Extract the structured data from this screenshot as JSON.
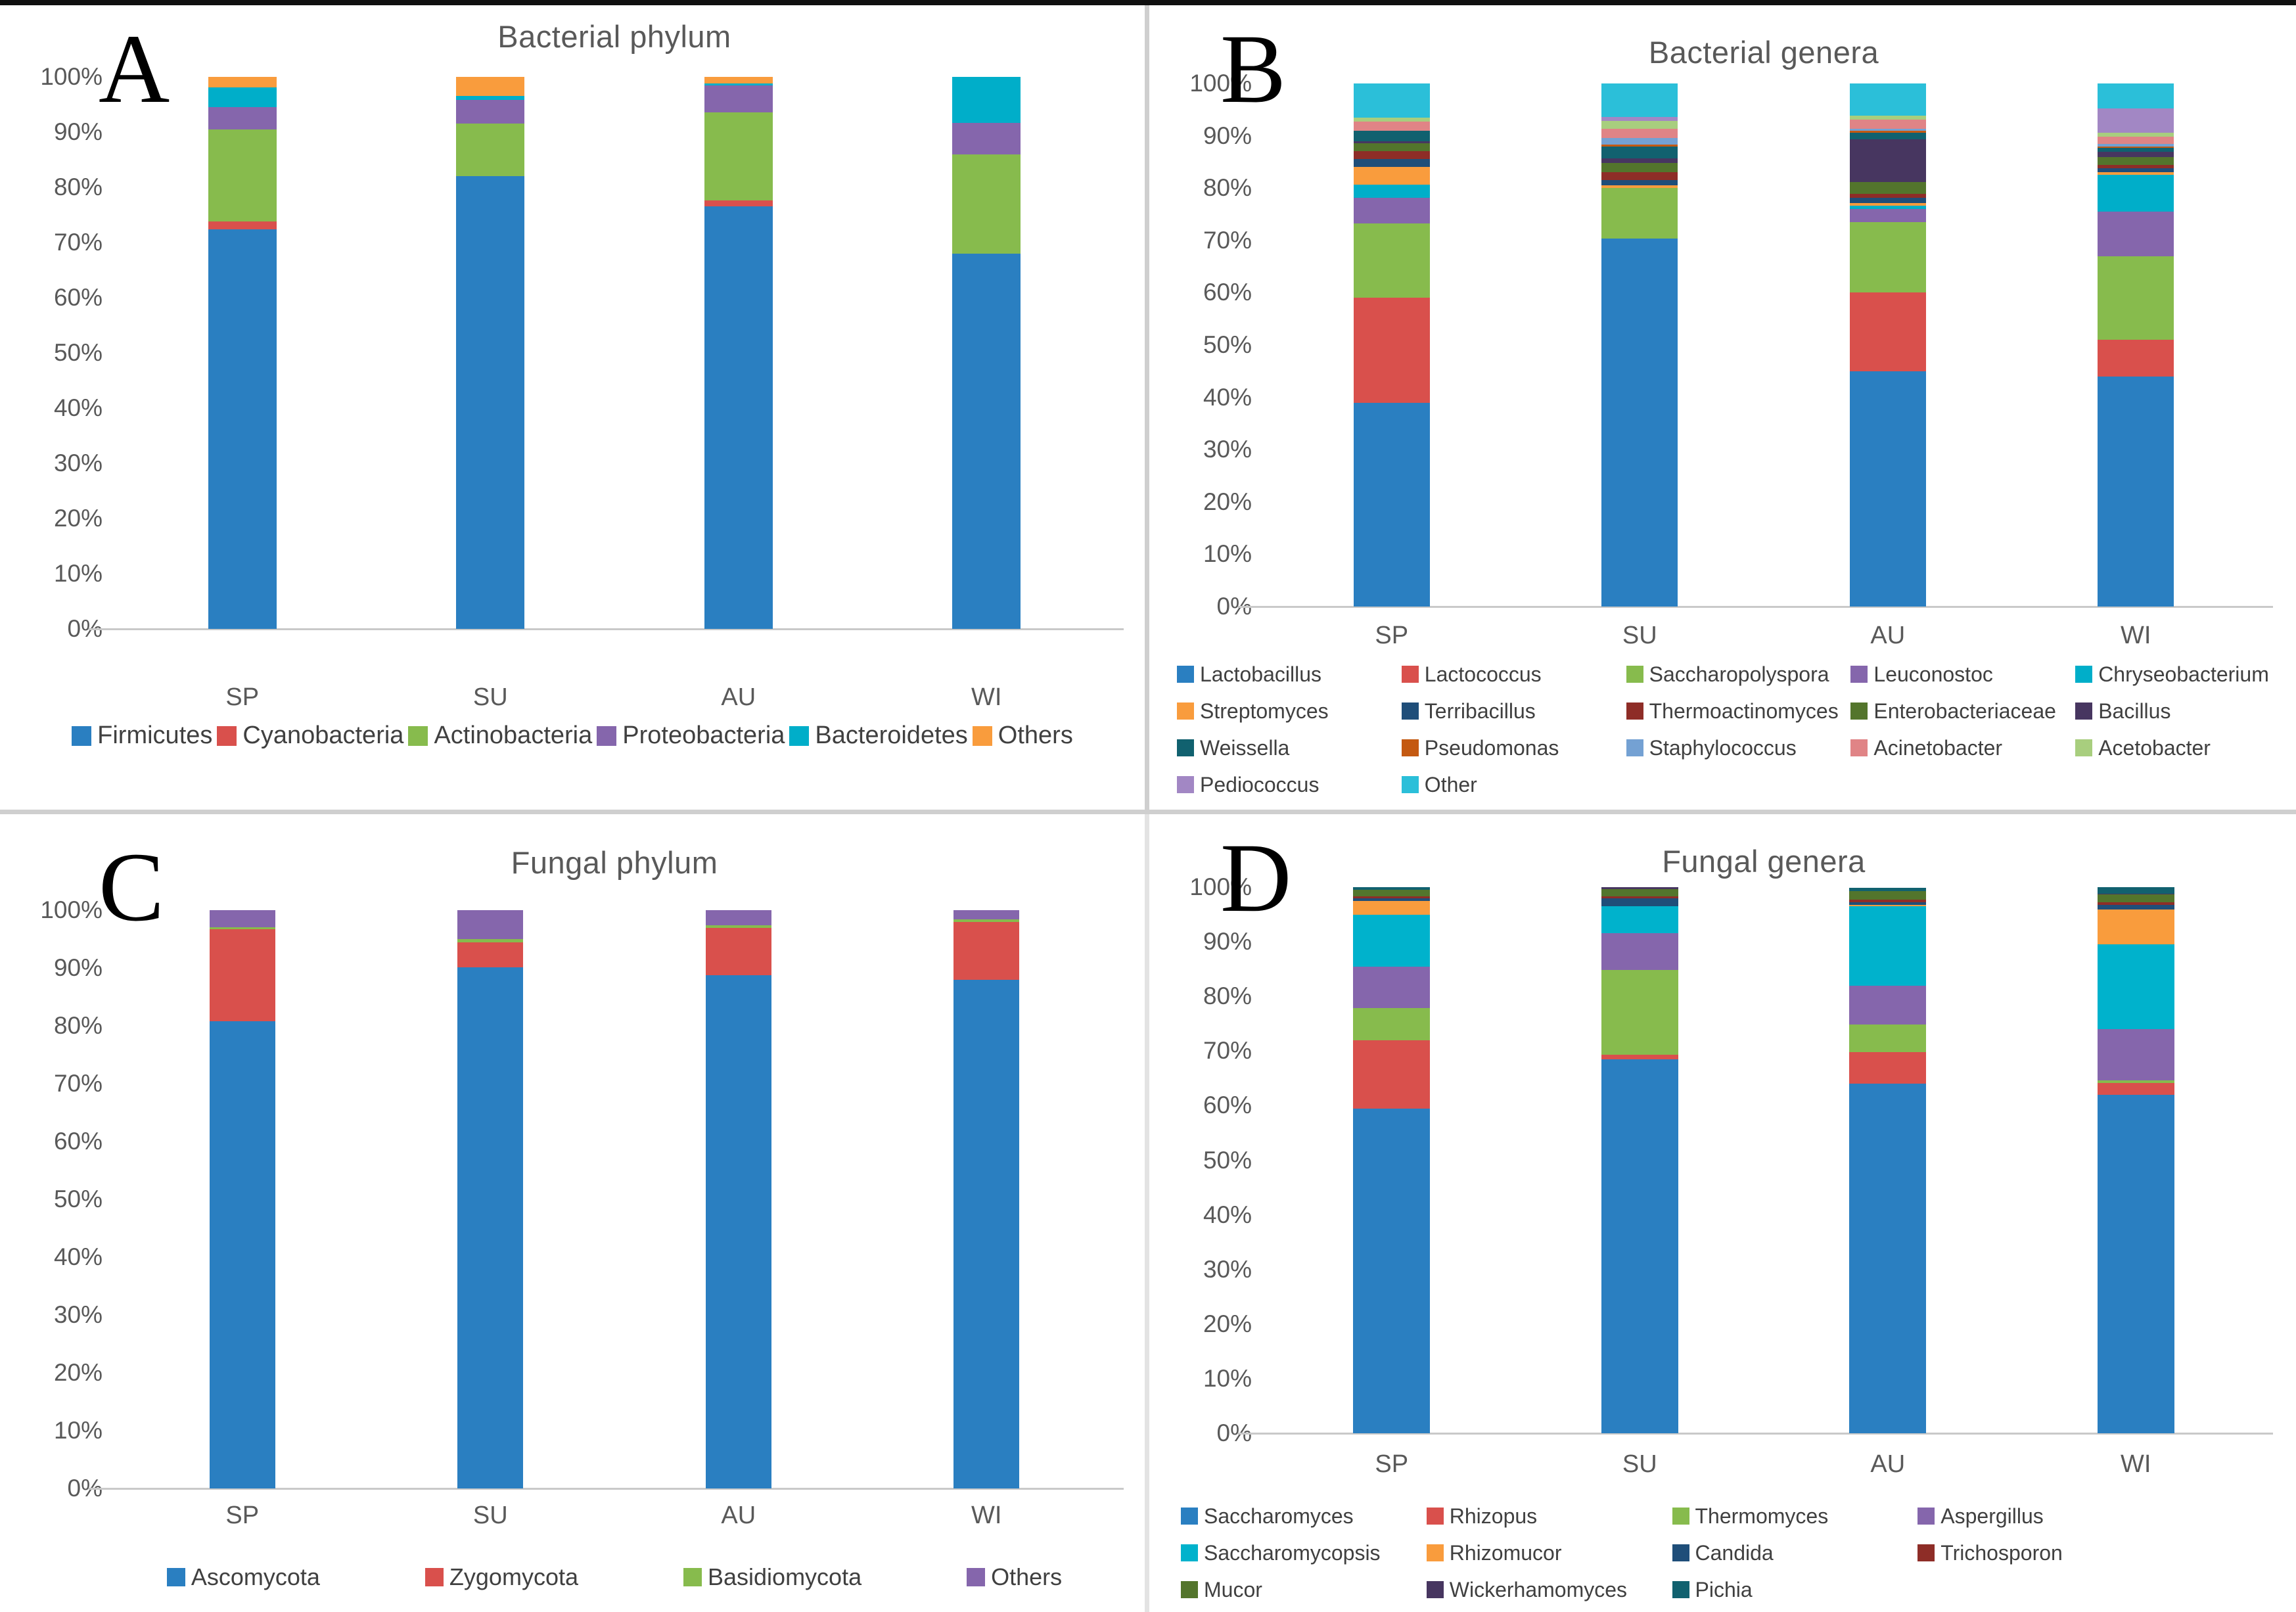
{
  "figure": {
    "background": "#ffffff",
    "top_border_color": "#101010",
    "divider_color": "#cfcfcf",
    "title_color": "#595959",
    "axis_text_color": "#595959",
    "axis_line_color": "#c9c9c9"
  },
  "chart_data": [
    {
      "id": "A",
      "panel_letter": "A",
      "type": "bar",
      "variant": "stacked-100-percent",
      "title": "Bacterial phylum",
      "categories": [
        "SP",
        "SU",
        "AU",
        "WI"
      ],
      "tick_labels": [
        "100%",
        "90%",
        "80%",
        "70%",
        "60%",
        "50%",
        "40%",
        "30%",
        "20%",
        "10%",
        "0%"
      ],
      "ylim": [
        0,
        100
      ],
      "grid": false,
      "legend_position": "bottom",
      "legend_mode": "row",
      "series": [
        {
          "name": "Firmicutes",
          "color": "#2A7FC1",
          "values": [
            72.4,
            82.0,
            76.5,
            68.0
          ]
        },
        {
          "name": "Cyanobacteria",
          "color": "#D9504C",
          "values": [
            1.4,
            0,
            1.1,
            0
          ]
        },
        {
          "name": "Actinobacteria",
          "color": "#87BB4D",
          "values": [
            16.7,
            9.5,
            16.0,
            18.0
          ]
        },
        {
          "name": "Proteobacteria",
          "color": "#8566AC",
          "values": [
            4.0,
            4.3,
            4.9,
            5.7
          ]
        },
        {
          "name": "Bacteroidetes",
          "color": "#00AEC9",
          "values": [
            3.6,
            0.7,
            0.3,
            8.3
          ]
        },
        {
          "name": "Others",
          "color": "#F99C3D",
          "values": [
            1.9,
            3.5,
            1.2,
            0
          ]
        }
      ]
    },
    {
      "id": "B",
      "panel_letter": "B",
      "type": "bar",
      "variant": "stacked-100-percent",
      "title": "Bacterial genera",
      "categories": [
        "SP",
        "SU",
        "AU",
        "WI"
      ],
      "tick_labels": [
        "100%",
        "90%",
        "80%",
        "70%",
        "60%",
        "50%",
        "40%",
        "30%",
        "20%",
        "10%",
        "0%"
      ],
      "ylim": [
        0,
        100
      ],
      "grid": false,
      "legend_position": "bottom",
      "legend_mode": "grid",
      "legend_columns": 5,
      "series": [
        {
          "name": "Lactobacillus",
          "color": "#2A7FC1",
          "values": [
            39.0,
            70.3,
            45.0,
            44.0
          ]
        },
        {
          "name": "Lactococcus",
          "color": "#D9504C",
          "values": [
            20.0,
            0,
            15.0,
            7.0
          ]
        },
        {
          "name": "Saccharopolyspora",
          "color": "#87BB4D",
          "values": [
            14.3,
            9.7,
            13.5,
            15.9
          ]
        },
        {
          "name": "Leuconostoc",
          "color": "#8566AC",
          "values": [
            4.8,
            0,
            2.5,
            8.6
          ]
        },
        {
          "name": "Chryseobacterium",
          "color": "#00AEC9",
          "values": [
            2.6,
            0,
            0.6,
            7.1
          ]
        },
        {
          "name": "Streptomyces",
          "color": "#F99C3D",
          "values": [
            3.3,
            0.5,
            0.5,
            0.4
          ]
        },
        {
          "name": "Terribacillus",
          "color": "#1F4E79",
          "values": [
            1.5,
            1.1,
            1.0,
            0.8
          ]
        },
        {
          "name": "Thermoactinomyces",
          "color": "#8E2D27",
          "values": [
            1.6,
            1.5,
            0.8,
            0.6
          ]
        },
        {
          "name": "Enterobacteriaceae",
          "color": "#53752C",
          "values": [
            1.5,
            1.7,
            2.3,
            1.5
          ]
        },
        {
          "name": "Bacillus",
          "color": "#473660",
          "values": [
            0.4,
            0.9,
            8.1,
            1.0
          ]
        },
        {
          "name": "Weissella",
          "color": "#11616F",
          "values": [
            2.0,
            2.3,
            1.3,
            0.8
          ]
        },
        {
          "name": "Pseudomonas",
          "color": "#C45911",
          "values": [
            0,
            0.3,
            0.35,
            0.2
          ]
        },
        {
          "name": "Staphylococcus",
          "color": "#74A1D3",
          "values": [
            0,
            1.3,
            0.45,
            0.6
          ]
        },
        {
          "name": "Acinetobacter",
          "color": "#E08486",
          "values": [
            1.7,
            1.7,
            1.7,
            1.3
          ]
        },
        {
          "name": "Acetobacter",
          "color": "#A8CE7E",
          "values": [
            0.8,
            1.5,
            0.8,
            0.8
          ]
        },
        {
          "name": "Pediococcus",
          "color": "#A287C4",
          "values": [
            0,
            0.8,
            0,
            4.6
          ]
        },
        {
          "name": "Other",
          "color": "#2BBFD9",
          "values": [
            6.5,
            6.4,
            6.1,
            4.8
          ]
        }
      ]
    },
    {
      "id": "C",
      "panel_letter": "C",
      "type": "bar",
      "variant": "stacked-100-percent",
      "title": "Fungal phylum",
      "categories": [
        "SP",
        "SU",
        "AU",
        "WI"
      ],
      "tick_labels": [
        "100%",
        "90%",
        "80%",
        "70%",
        "60%",
        "50%",
        "40%",
        "30%",
        "20%",
        "10%",
        "0%"
      ],
      "ylim": [
        0,
        100
      ],
      "grid": false,
      "legend_position": "bottom",
      "legend_mode": "row",
      "series": [
        {
          "name": "Ascomycota",
          "color": "#2A7FC1",
          "values": [
            80.8,
            90.1,
            88.7,
            88.0
          ]
        },
        {
          "name": "Zygomycota",
          "color": "#D9504C",
          "values": [
            15.9,
            4.3,
            8.2,
            10.0
          ]
        },
        {
          "name": "Basidiomycota",
          "color": "#87BB4D",
          "values": [
            0.4,
            0.6,
            0.5,
            0.4
          ]
        },
        {
          "name": "Others",
          "color": "#8566AC",
          "values": [
            2.9,
            5.0,
            2.6,
            1.6
          ]
        }
      ]
    },
    {
      "id": "D",
      "panel_letter": "D",
      "type": "bar",
      "variant": "stacked-100-percent",
      "title": "Fungal genera",
      "categories": [
        "SP",
        "SU",
        "AU",
        "WI"
      ],
      "tick_labels": [
        "100%",
        "90%",
        "80%",
        "70%",
        "60%",
        "50%",
        "40%",
        "30%",
        "20%",
        "10%",
        "0%"
      ],
      "ylim": [
        0,
        100
      ],
      "grid": false,
      "legend_position": "bottom",
      "legend_mode": "grid",
      "legend_columns": 4,
      "series": [
        {
          "name": "Saccharomyces",
          "color": "#2A7FC1",
          "values": [
            59.5,
            68.5,
            64.0,
            62.0
          ]
        },
        {
          "name": "Rhizopus",
          "color": "#D9504C",
          "values": [
            12.5,
            0.8,
            5.8,
            2.1
          ]
        },
        {
          "name": "Thermomyces",
          "color": "#87BB4D",
          "values": [
            5.9,
            15.6,
            5.0,
            0.5
          ]
        },
        {
          "name": "Aspergillus",
          "color": "#8566AC",
          "values": [
            7.5,
            6.7,
            7.2,
            9.4
          ]
        },
        {
          "name": "Saccharomycopsis",
          "color": "#00B2CC",
          "values": [
            9.5,
            4.9,
            14.5,
            15.5
          ]
        },
        {
          "name": "Rhizomucor",
          "color": "#F99C3D",
          "values": [
            2.6,
            0,
            0.3,
            6.4
          ]
        },
        {
          "name": "Candida",
          "color": "#1F4E79",
          "values": [
            0.5,
            1.4,
            0.4,
            0.9
          ]
        },
        {
          "name": "Trichosporon",
          "color": "#8E2D27",
          "values": [
            0.3,
            0.4,
            0.5,
            0.5
          ]
        },
        {
          "name": "Mucor",
          "color": "#53752C",
          "values": [
            1.2,
            1.4,
            1.6,
            1.4
          ]
        },
        {
          "name": "Wickerhamomyces",
          "color": "#473660",
          "values": [
            0,
            0.3,
            0,
            0.1
          ]
        },
        {
          "name": "Pichia",
          "color": "#11616F",
          "values": [
            0.5,
            0,
            0.6,
            1.2
          ]
        }
      ]
    }
  ]
}
